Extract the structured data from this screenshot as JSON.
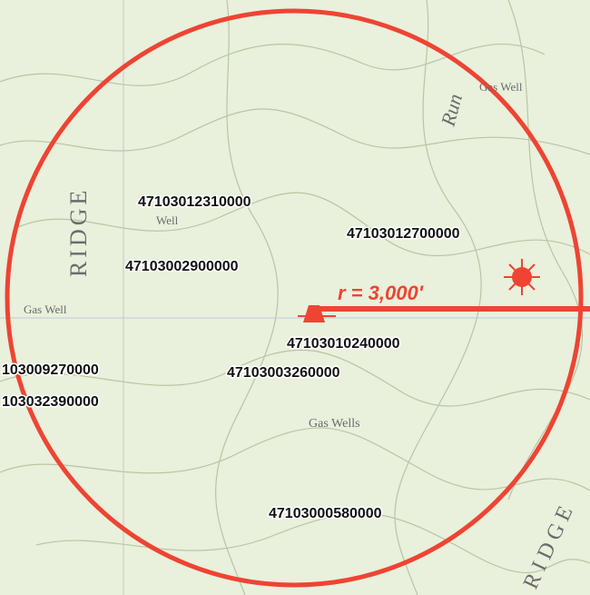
{
  "map": {
    "radius_label": "r = 3,000'",
    "wells": [
      {
        "label": "47103012310000"
      },
      {
        "label": "47103012700000"
      },
      {
        "label": "47103002900000"
      },
      {
        "label": "47103010240000"
      },
      {
        "label": "103009270000"
      },
      {
        "label": "47103003260000"
      },
      {
        "label": "103032390000"
      },
      {
        "label": "47103000580000"
      }
    ],
    "features": [
      {
        "label": "RIDGE"
      },
      {
        "label": "RIDGE"
      },
      {
        "label": "Run"
      },
      {
        "label": "Gas Well"
      },
      {
        "label": "Well"
      },
      {
        "label": "Gas Well"
      },
      {
        "label": "Gas Wells"
      }
    ]
  }
}
